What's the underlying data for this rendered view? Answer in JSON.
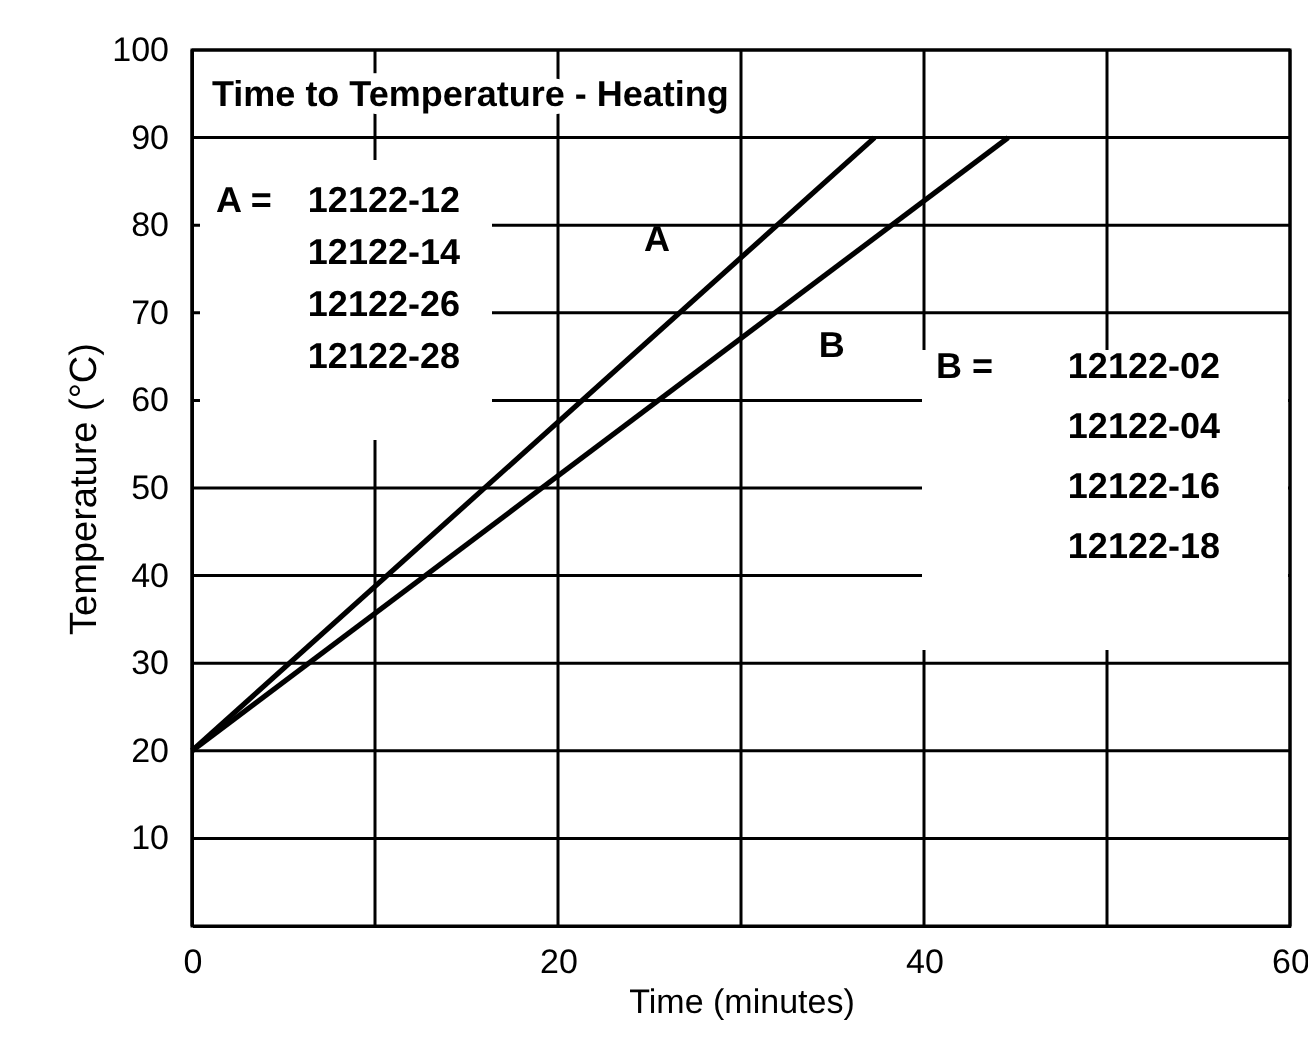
{
  "chart_data": {
    "type": "line",
    "title": "Time to Temperature - Heating",
    "xlabel": "Time (minutes)",
    "ylabel": "Temperature (°C)",
    "series": [
      {
        "name": "A",
        "color": "#000000",
        "x": [
          0,
          37.3
        ],
        "values": [
          20,
          90
        ]
      },
      {
        "name": "B",
        "color": "#000000",
        "x": [
          0,
          44.6
        ],
        "values": [
          20,
          90
        ]
      }
    ],
    "annotations": [
      "A =",
      "12122-12",
      "12122-14",
      "12122-26",
      "12122-28",
      "B =",
      "12122-02",
      "12122-04",
      "12122-16",
      "12122-18"
    ],
    "xlim": [
      0,
      60
    ],
    "xticks": [
      0,
      {
        "value": 10,
        "label": null
      },
      20,
      {
        "value": 30,
        "label": null
      },
      40,
      {
        "value": 50,
        "label": null
      },
      60
    ],
    "ylim": [
      0,
      100
    ],
    "yticks": [
      10,
      20,
      30,
      40,
      50,
      60,
      70,
      80,
      90,
      100
    ],
    "grid": true,
    "marker": "none",
    "line_style": "solid"
  }
}
